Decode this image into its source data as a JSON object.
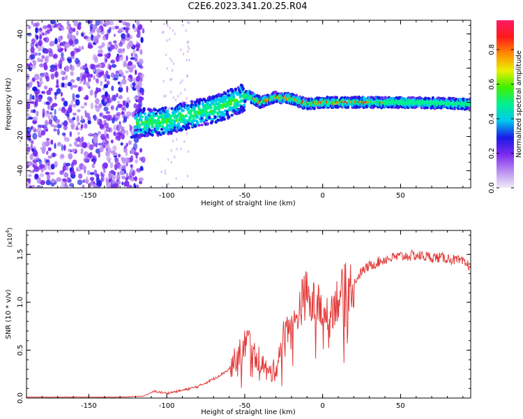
{
  "title": "C2E6.2023.341.20.25.R04",
  "colors": {
    "snr_line": "#e23a3a",
    "axis": "#000000"
  },
  "chart_data": [
    {
      "type": "heatmap",
      "title": "C2E6.2023.341.20.25.R04",
      "xlabel": "Height of straight line (km)",
      "ylabel": "Frequency (Hz)",
      "xlim": [
        -190,
        95
      ],
      "ylim": [
        -50,
        48
      ],
      "xticks": [
        -150,
        -100,
        -50,
        0,
        50
      ],
      "yticks": [
        -40,
        -20,
        0,
        20,
        40
      ],
      "colorbar": {
        "label": "Normalized spectral amplitude",
        "range": [
          0.0,
          0.97
        ],
        "ticks": [
          0.0,
          0.2,
          0.4,
          0.6,
          0.8
        ],
        "tick_labels": [
          "0.0",
          "0.2",
          "0.4",
          "0.6",
          "0.8"
        ],
        "colormap": "rainbow",
        "stops": [
          "#f0ecfa",
          "#b98df0",
          "#7b2af0",
          "#1a1ae6",
          "#00c8f0",
          "#00f090",
          "#40f000",
          "#e8f000",
          "#ff8c00",
          "#ff1a1a",
          "#ff1a66"
        ]
      },
      "ridge": [
        {
          "x": -120,
          "freq": -12
        },
        {
          "x": -100,
          "freq": -11
        },
        {
          "x": -80,
          "freq": -6
        },
        {
          "x": -65,
          "freq": -3
        },
        {
          "x": -55,
          "freq": 1
        },
        {
          "x": -48,
          "freq": 4
        },
        {
          "x": -40,
          "freq": 0
        },
        {
          "x": -30,
          "freq": 3
        },
        {
          "x": -20,
          "freq": 2
        },
        {
          "x": -10,
          "freq": -1
        },
        {
          "x": 0,
          "freq": 0
        },
        {
          "x": 20,
          "freq": 0
        },
        {
          "x": 50,
          "freq": 0
        },
        {
          "x": 95,
          "freq": -1
        }
      ]
    },
    {
      "type": "line",
      "xlabel": "Height of straight line (km)",
      "ylabel": "SNR (10 * v/v)",
      "y_multiplier": "(x10",
      "y_multiplier_exp": "4",
      "xlim": [
        -190,
        95
      ],
      "ylim": [
        0.0,
        1.75
      ],
      "xticks": [
        -150,
        -100,
        -50,
        0,
        50
      ],
      "yticks": [
        0.0,
        0.5,
        1.0,
        1.5
      ],
      "ytick_labels": [
        "0.0",
        "0.5",
        "1.0",
        "1.5"
      ],
      "grid": false,
      "series": [
        {
          "x": [
            -190,
            -170,
            -150,
            -130,
            -115,
            -108,
            -100,
            -90,
            -80,
            -70,
            -60,
            -52,
            -48,
            -44,
            -40,
            -35,
            -30,
            -26,
            -22,
            -18,
            -15,
            -12,
            -10,
            -8,
            -5,
            0,
            5,
            10,
            15,
            20,
            25,
            30,
            40,
            50,
            60,
            70,
            80,
            88,
            92,
            95
          ],
          "y": [
            0.01,
            0.01,
            0.01,
            0.01,
            0.02,
            0.07,
            0.05,
            0.08,
            0.12,
            0.2,
            0.3,
            0.5,
            0.62,
            0.45,
            0.4,
            0.25,
            0.3,
            0.6,
            0.8,
            0.75,
            0.95,
            1.05,
            1.1,
            0.95,
            1.0,
            0.9,
            0.92,
            1.05,
            1.15,
            1.2,
            1.32,
            1.38,
            1.45,
            1.48,
            1.49,
            1.47,
            1.46,
            1.43,
            1.4,
            1.38
          ]
        }
      ]
    }
  ]
}
